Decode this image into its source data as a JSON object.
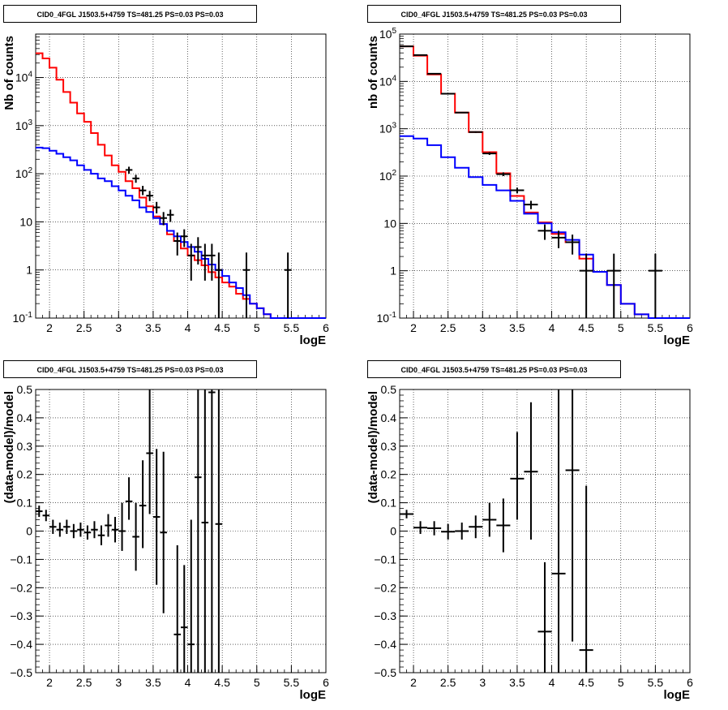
{
  "chart_data": [
    {
      "type": "step",
      "title": "CID0_4FGL J1503.5+4759 TS=481.25 PS=0.03 PS=0.03",
      "xlabel": "logE",
      "ylabel": "Nb of counts",
      "xlim": [
        1.8,
        6
      ],
      "ylim": [
        0.1,
        80000
      ],
      "yscale": "log",
      "grid": true,
      "x_ticks": [
        "2",
        "2.5",
        "3",
        "3.5",
        "4",
        "4.5",
        "5",
        "5.5",
        "6"
      ],
      "y_ticks": [
        "10^-1",
        "1",
        "10",
        "10^2",
        "10^3",
        "10^4"
      ],
      "series": [
        {
          "color": "#ff0000",
          "edges": [
            1.8,
            1.9,
            2.0,
            2.1,
            2.2,
            2.3,
            2.4,
            2.5,
            2.6,
            2.7,
            2.8,
            2.9,
            3.0,
            3.1,
            3.2,
            3.3,
            3.4,
            3.5,
            3.6,
            3.7,
            3.8,
            3.9,
            4.0,
            4.1,
            4.2,
            4.3,
            4.4,
            4.5,
            4.6,
            4.7,
            4.8,
            4.9,
            5.0,
            5.1,
            5.2,
            5.3,
            5.4,
            5.5,
            5.6,
            5.7,
            5.8,
            5.9,
            6.0
          ],
          "values": [
            32000,
            25000,
            16000,
            9000,
            5000,
            3000,
            1800,
            1200,
            700,
            400,
            240,
            150,
            110,
            70,
            50,
            32,
            21,
            13,
            9,
            5.5,
            4,
            2.8,
            2,
            1.6,
            1.25,
            0.9,
            0.7,
            0.55,
            0.45,
            0.32,
            0.25,
            0.2,
            0.16,
            0.12,
            0.1,
            0.1,
            0.1,
            0.1,
            0.1,
            0.1,
            0.1,
            0.1
          ]
        },
        {
          "color": "#0000ff",
          "edges": [
            1.8,
            1.9,
            2.0,
            2.1,
            2.2,
            2.3,
            2.4,
            2.5,
            2.6,
            2.7,
            2.8,
            2.9,
            3.0,
            3.1,
            3.2,
            3.3,
            3.4,
            3.5,
            3.6,
            3.7,
            3.8,
            3.9,
            4.0,
            4.1,
            4.2,
            4.3,
            4.4,
            4.5,
            4.6,
            4.7,
            4.8,
            4.9,
            5.0,
            5.1,
            5.2,
            5.3,
            5.4,
            5.5,
            5.6,
            5.7,
            5.8,
            5.9,
            6.0
          ],
          "values": [
            350,
            340,
            300,
            260,
            220,
            190,
            150,
            120,
            100,
            80,
            70,
            55,
            45,
            35,
            28,
            20,
            16,
            12,
            9,
            6.5,
            5,
            3.8,
            3,
            2.4,
            1.7,
            1.3,
            1.0,
            0.75,
            0.55,
            0.42,
            0.3,
            0.2,
            0.16,
            0.12,
            0.1,
            0.1,
            0.1,
            0.1,
            0.1,
            0.1,
            0.1,
            0.1
          ]
        }
      ],
      "points": [
        {
          "x": 3.15,
          "y": 120,
          "xerr": 0.05,
          "ylo": 100,
          "yhi": 140
        },
        {
          "x": 3.25,
          "y": 80,
          "xerr": 0.05,
          "ylo": 65,
          "yhi": 95
        },
        {
          "x": 3.35,
          "y": 45,
          "xerr": 0.05,
          "ylo": 36,
          "yhi": 56
        },
        {
          "x": 3.45,
          "y": 35,
          "xerr": 0.05,
          "ylo": 27,
          "yhi": 44
        },
        {
          "x": 3.55,
          "y": 20,
          "xerr": 0.05,
          "ylo": 15,
          "yhi": 26
        },
        {
          "x": 3.65,
          "y": 12,
          "xerr": 0.05,
          "ylo": 8.5,
          "yhi": 16
        },
        {
          "x": 3.75,
          "y": 14,
          "xerr": 0.05,
          "ylo": 10,
          "yhi": 18
        },
        {
          "x": 3.85,
          "y": 4,
          "xerr": 0.05,
          "ylo": 2,
          "yhi": 6
        },
        {
          "x": 3.95,
          "y": 5,
          "xerr": 0.05,
          "ylo": 3,
          "yhi": 7
        },
        {
          "x": 4.05,
          "y": 2,
          "xerr": 0.05,
          "ylo": 0.6,
          "yhi": 3.5
        },
        {
          "x": 4.15,
          "y": 3,
          "xerr": 0.05,
          "ylo": 1.3,
          "yhi": 4.8
        },
        {
          "x": 4.25,
          "y": 2,
          "xerr": 0.05,
          "ylo": 0.6,
          "yhi": 3.5
        },
        {
          "x": 4.35,
          "y": 2,
          "xerr": 0.05,
          "ylo": 0.6,
          "yhi": 3.5
        },
        {
          "x": 4.45,
          "y": 1,
          "xerr": 0.05,
          "ylo": 0.1,
          "yhi": 2.3
        },
        {
          "x": 4.85,
          "y": 1,
          "xerr": 0.05,
          "ylo": 0.1,
          "yhi": 2.3
        },
        {
          "x": 5.45,
          "y": 1,
          "xerr": 0.05,
          "ylo": 0.1,
          "yhi": 2.3
        }
      ]
    },
    {
      "type": "step",
      "title": "CID0_4FGL J1503.5+4759 TS=481.25 PS=0.03 PS=0.03",
      "xlabel": "logE",
      "ylabel": "nb of counts",
      "xlim": [
        1.8,
        6
      ],
      "ylim": [
        0.1,
        100000
      ],
      "yscale": "log",
      "grid": true,
      "x_ticks": [
        "2",
        "2.5",
        "3",
        "3.5",
        "4",
        "4.5",
        "5",
        "5.5",
        "6"
      ],
      "y_ticks": [
        "10^-1",
        "1",
        "10",
        "10^2",
        "10^3",
        "10^4",
        "10^5"
      ],
      "series": [
        {
          "color": "#ff0000",
          "edges": [
            1.8,
            2.0,
            2.2,
            2.4,
            2.6,
            2.8,
            3.0,
            3.2,
            3.4,
            3.6,
            3.8,
            4.0,
            4.2,
            4.4,
            4.6,
            4.8,
            5.0,
            5.2,
            5.4,
            5.6,
            5.8,
            6.0
          ],
          "values": [
            55000,
            35000,
            14000,
            5500,
            2200,
            850,
            320,
            115,
            38,
            17,
            10.5,
            6,
            4,
            1.8,
            0.95,
            0.5,
            0.2,
            0.12,
            0.1,
            0.1,
            0.1
          ]
        },
        {
          "color": "#0000ff",
          "edges": [
            1.8,
            2.0,
            2.2,
            2.4,
            2.6,
            2.8,
            3.0,
            3.2,
            3.4,
            3.6,
            3.8,
            4.0,
            4.2,
            4.4,
            4.6,
            4.8,
            5.0,
            5.2,
            5.4,
            5.6,
            5.8,
            6.0
          ],
          "values": [
            700,
            620,
            450,
            250,
            150,
            95,
            65,
            50,
            30,
            16,
            10,
            6.5,
            4.5,
            2.2,
            0.95,
            0.5,
            0.2,
            0.12,
            0.1,
            0.1,
            0.1
          ]
        }
      ],
      "points": [
        {
          "x": 1.9,
          "y": 55000,
          "xerr": 0.1,
          "ylo": 54500,
          "yhi": 55500
        },
        {
          "x": 2.1,
          "y": 36000,
          "xerr": 0.1,
          "ylo": 35600,
          "yhi": 36400
        },
        {
          "x": 2.3,
          "y": 14500,
          "xerr": 0.1,
          "ylo": 14300,
          "yhi": 14700
        },
        {
          "x": 2.5,
          "y": 5500,
          "xerr": 0.1,
          "ylo": 5400,
          "yhi": 5600
        },
        {
          "x": 2.7,
          "y": 2200,
          "xerr": 0.1,
          "ylo": 2150,
          "yhi": 2250
        },
        {
          "x": 2.9,
          "y": 850,
          "xerr": 0.1,
          "ylo": 820,
          "yhi": 880
        },
        {
          "x": 3.1,
          "y": 300,
          "xerr": 0.1,
          "ylo": 280,
          "yhi": 320
        },
        {
          "x": 3.3,
          "y": 110,
          "xerr": 0.1,
          "ylo": 100,
          "yhi": 120
        },
        {
          "x": 3.5,
          "y": 50,
          "xerr": 0.1,
          "ylo": 43,
          "yhi": 57
        },
        {
          "x": 3.7,
          "y": 25,
          "xerr": 0.1,
          "ylo": 20,
          "yhi": 30
        },
        {
          "x": 3.9,
          "y": 7,
          "xerr": 0.1,
          "ylo": 4.5,
          "yhi": 9.5
        },
        {
          "x": 4.1,
          "y": 5,
          "xerr": 0.1,
          "ylo": 3,
          "yhi": 7
        },
        {
          "x": 4.3,
          "y": 4,
          "xerr": 0.1,
          "ylo": 2.2,
          "yhi": 5.8
        },
        {
          "x": 4.5,
          "y": 1,
          "xerr": 0.1,
          "ylo": 0.1,
          "yhi": 2.3
        },
        {
          "x": 4.9,
          "y": 1,
          "xerr": 0.1,
          "ylo": 0.1,
          "yhi": 2.3
        },
        {
          "x": 5.5,
          "y": 1,
          "xerr": 0.1,
          "ylo": 0.1,
          "yhi": 2.3
        }
      ]
    },
    {
      "type": "scatter",
      "title": "CID0_4FGL J1503.5+4759 TS=481.25 PS=0.03 PS=0.03",
      "xlabel": "logE",
      "ylabel": "(data-model)/model",
      "xlim": [
        1.8,
        6
      ],
      "ylim": [
        -0.5,
        0.5
      ],
      "yscale": "linear",
      "grid": true,
      "x_ticks": [
        "2",
        "2.5",
        "3",
        "3.5",
        "4",
        "4.5",
        "5",
        "5.5",
        "6"
      ],
      "y_ticks": [
        "−0.5",
        "−0.4",
        "−0.3",
        "−0.2",
        "−0.1",
        "0",
        "0.1",
        "0.2",
        "0.3",
        "0.4",
        "0.5"
      ],
      "points": [
        {
          "x": 1.85,
          "y": 0.07,
          "xerr": 0.05,
          "ylo": 0.05,
          "yhi": 0.09
        },
        {
          "x": 1.95,
          "y": 0.055,
          "xerr": 0.05,
          "ylo": 0.035,
          "yhi": 0.075
        },
        {
          "x": 2.05,
          "y": 0.015,
          "xerr": 0.05,
          "ylo": -0.01,
          "yhi": 0.04
        },
        {
          "x": 2.15,
          "y": 0.005,
          "xerr": 0.05,
          "ylo": -0.02,
          "yhi": 0.03
        },
        {
          "x": 2.25,
          "y": 0.015,
          "xerr": 0.05,
          "ylo": -0.01,
          "yhi": 0.04
        },
        {
          "x": 2.35,
          "y": 0.0,
          "xerr": 0.05,
          "ylo": -0.025,
          "yhi": 0.025
        },
        {
          "x": 2.45,
          "y": 0.005,
          "xerr": 0.05,
          "ylo": -0.02,
          "yhi": 0.03
        },
        {
          "x": 2.55,
          "y": -0.005,
          "xerr": 0.05,
          "ylo": -0.03,
          "yhi": 0.02
        },
        {
          "x": 2.65,
          "y": 0.005,
          "xerr": 0.05,
          "ylo": -0.025,
          "yhi": 0.035
        },
        {
          "x": 2.75,
          "y": -0.015,
          "xerr": 0.05,
          "ylo": -0.05,
          "yhi": 0.02
        },
        {
          "x": 2.85,
          "y": 0.02,
          "xerr": 0.05,
          "ylo": -0.02,
          "yhi": 0.06
        },
        {
          "x": 2.95,
          "y": 0.005,
          "xerr": 0.05,
          "ylo": -0.04,
          "yhi": 0.05
        },
        {
          "x": 3.05,
          "y": 0.0,
          "xerr": 0.05,
          "ylo": -0.07,
          "yhi": 0.1
        },
        {
          "x": 3.15,
          "y": 0.105,
          "xerr": 0.05,
          "ylo": 0.04,
          "yhi": 0.19
        },
        {
          "x": 3.25,
          "y": -0.02,
          "xerr": 0.05,
          "ylo": -0.14,
          "yhi": 0.1
        },
        {
          "x": 3.35,
          "y": 0.09,
          "xerr": 0.05,
          "ylo": -0.06,
          "yhi": 0.25
        },
        {
          "x": 3.45,
          "y": 0.275,
          "xerr": 0.05,
          "ylo": 0.06,
          "yhi": 0.5
        },
        {
          "x": 3.55,
          "y": 0.05,
          "xerr": 0.05,
          "ylo": -0.19,
          "yhi": 0.29
        },
        {
          "x": 3.65,
          "y": -0.005,
          "xerr": 0.05,
          "ylo": -0.29,
          "yhi": 0.28
        },
        {
          "x": 3.85,
          "y": -0.365,
          "xerr": 0.05,
          "ylo": -0.5,
          "yhi": -0.05
        },
        {
          "x": 3.95,
          "y": -0.34,
          "xerr": 0.05,
          "ylo": -0.5,
          "yhi": -0.12
        },
        {
          "x": 4.05,
          "y": -0.4,
          "xerr": 0.05,
          "ylo": -0.5,
          "yhi": 0.04
        },
        {
          "x": 4.15,
          "y": 0.19,
          "xerr": 0.05,
          "ylo": -0.5,
          "yhi": 0.5
        },
        {
          "x": 4.25,
          "y": 0.03,
          "xerr": 0.05,
          "ylo": -0.5,
          "yhi": 0.5
        },
        {
          "x": 4.35,
          "y": 0.49,
          "xerr": 0.05,
          "ylo": -0.5,
          "yhi": 0.5
        },
        {
          "x": 4.45,
          "y": 0.025,
          "xerr": 0.05,
          "ylo": -0.5,
          "yhi": 0.5
        }
      ]
    },
    {
      "type": "scatter",
      "title": "CID0_4FGL J1503.5+4759 TS=481.25 PS=0.03 PS=0.03",
      "xlabel": "logE",
      "ylabel": "(data-model)/model",
      "xlim": [
        1.8,
        6
      ],
      "ylim": [
        -0.5,
        0.5
      ],
      "yscale": "linear",
      "grid": true,
      "x_ticks": [
        "2",
        "2.5",
        "3",
        "3.5",
        "4",
        "4.5",
        "5",
        "5.5",
        "6"
      ],
      "y_ticks": [
        "−0.5",
        "−0.4",
        "−0.3",
        "−0.2",
        "−0.1",
        "0",
        "0.1",
        "0.2",
        "0.3",
        "0.4",
        "0.5"
      ],
      "points": [
        {
          "x": 1.9,
          "y": 0.06,
          "xerr": 0.1,
          "ylo": 0.045,
          "yhi": 0.075
        },
        {
          "x": 2.1,
          "y": 0.012,
          "xerr": 0.1,
          "ylo": -0.01,
          "yhi": 0.035
        },
        {
          "x": 2.3,
          "y": 0.01,
          "xerr": 0.1,
          "ylo": -0.015,
          "yhi": 0.035
        },
        {
          "x": 2.5,
          "y": -0.002,
          "xerr": 0.1,
          "ylo": -0.03,
          "yhi": 0.025
        },
        {
          "x": 2.7,
          "y": 0.0,
          "xerr": 0.1,
          "ylo": -0.03,
          "yhi": 0.03
        },
        {
          "x": 2.9,
          "y": 0.015,
          "xerr": 0.1,
          "ylo": -0.025,
          "yhi": 0.055
        },
        {
          "x": 3.1,
          "y": 0.04,
          "xerr": 0.1,
          "ylo": -0.02,
          "yhi": 0.1
        },
        {
          "x": 3.3,
          "y": 0.02,
          "xerr": 0.1,
          "ylo": -0.075,
          "yhi": 0.115
        },
        {
          "x": 3.5,
          "y": 0.185,
          "xerr": 0.1,
          "ylo": 0.04,
          "yhi": 0.35
        },
        {
          "x": 3.7,
          "y": 0.21,
          "xerr": 0.1,
          "ylo": -0.03,
          "yhi": 0.455
        },
        {
          "x": 3.9,
          "y": -0.355,
          "xerr": 0.1,
          "ylo": -0.5,
          "yhi": -0.11
        },
        {
          "x": 4.1,
          "y": -0.15,
          "xerr": 0.1,
          "ylo": -0.5,
          "yhi": 0.5
        },
        {
          "x": 4.3,
          "y": 0.215,
          "xerr": 0.1,
          "ylo": -0.39,
          "yhi": 0.5
        },
        {
          "x": 4.5,
          "y": -0.42,
          "xerr": 0.1,
          "ylo": -0.5,
          "yhi": 0.16
        }
      ]
    }
  ]
}
